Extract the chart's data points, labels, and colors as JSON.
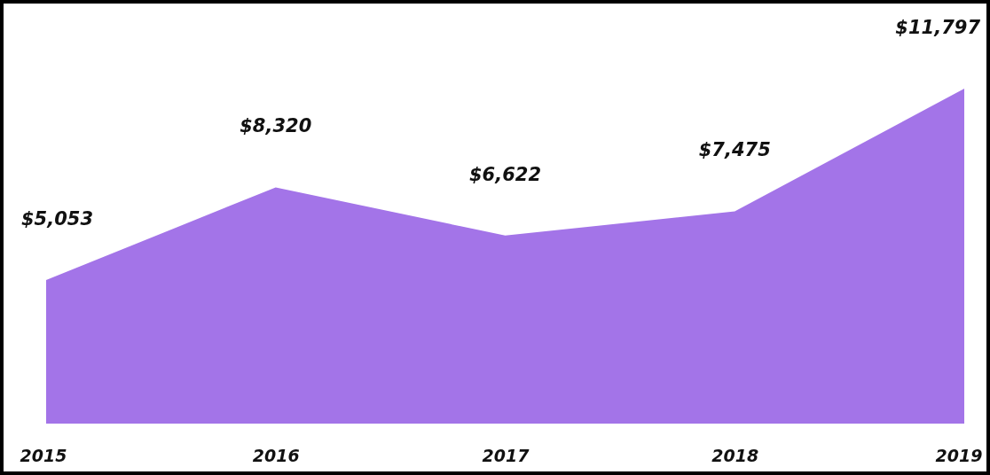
{
  "chart_data": {
    "type": "area",
    "categories": [
      "2015",
      "2016",
      "2017",
      "2018",
      "2019"
    ],
    "values": [
      5053,
      8320,
      6622,
      7475,
      11797
    ],
    "value_labels": [
      "$5,053",
      "$8,320",
      "$6,622",
      "$7,475",
      "$11,797"
    ],
    "color": "#a374e8"
  }
}
